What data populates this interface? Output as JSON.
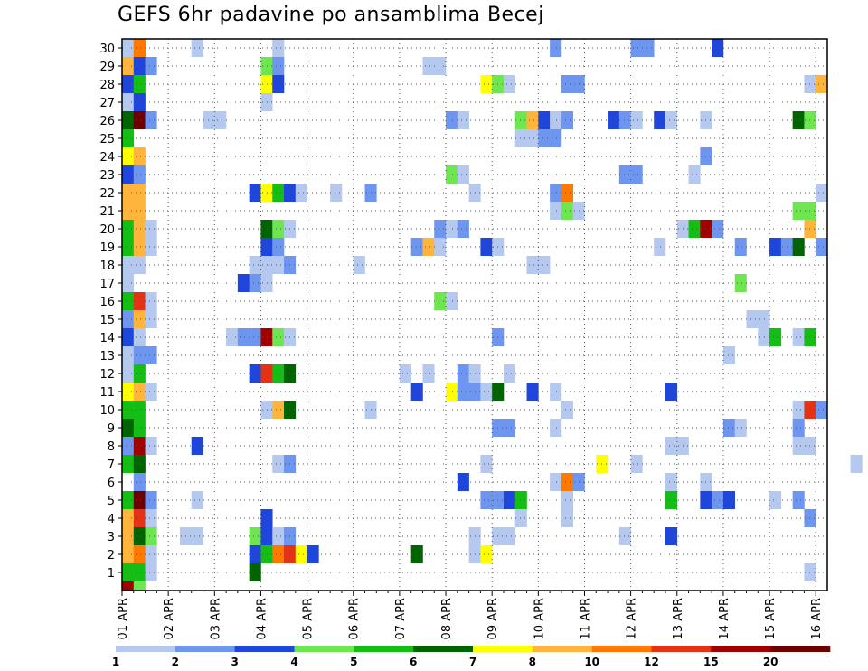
{
  "chart_data": {
    "type": "heatmap",
    "title": "GEFS 6hr padavine po ansamblima Becej",
    "xlabel": "",
    "ylabel": "",
    "x_tick_labels": [
      "01 APR",
      "02 APR",
      "03 APR",
      "04 APR",
      "05 APR",
      "06 APR",
      "07 APR",
      "08 APR",
      "09 APR",
      "10 APR",
      "11 APR",
      "12 APR",
      "13 APR",
      "14 APR",
      "15 APR",
      "16 APR"
    ],
    "y_tick_labels": [
      "1",
      "2",
      "3",
      "4",
      "5",
      "6",
      "7",
      "8",
      "9",
      "10",
      "11",
      "12",
      "13",
      "14",
      "15",
      "16",
      "17",
      "18",
      "19",
      "20",
      "21",
      "22",
      "23",
      "24",
      "25",
      "26",
      "27",
      "28",
      "29",
      "30"
    ],
    "x_range_steps": [
      0,
      61
    ],
    "y_range_members": [
      0,
      30
    ],
    "grid": true,
    "color_levels": [
      "1",
      "2",
      "3",
      "4",
      "5",
      "6",
      "7",
      "8",
      "10",
      "12",
      "15",
      "20"
    ],
    "color_scale": [
      "#b4c8f0",
      "#6e96f0",
      "#1e46dc",
      "#6ee650",
      "#14be14",
      "#006400",
      "#ffff00",
      "#ffb43c",
      "#ff7800",
      "#e63214",
      "#a00000",
      "#6e0000"
    ],
    "cells": [
      [
        0,
        0,
        10
      ],
      [
        1,
        0,
        3
      ],
      [
        0,
        30,
        8
      ],
      [
        1,
        30,
        4
      ],
      [
        6,
        30,
        0
      ],
      [
        13,
        30,
        0
      ],
      [
        37,
        30,
        1
      ],
      [
        44,
        30,
        1
      ],
      [
        44,
        30,
        1
      ],
      [
        45,
        30,
        1
      ],
      [
        51,
        30,
        2
      ],
      [
        0,
        1,
        4
      ],
      [
        1,
        1,
        4
      ],
      [
        2,
        1,
        0
      ],
      [
        11,
        1,
        5
      ],
      [
        59,
        1,
        0
      ],
      [
        0,
        2,
        7
      ],
      [
        1,
        2,
        8
      ],
      [
        2,
        2,
        0
      ],
      [
        11,
        2,
        2
      ],
      [
        12,
        2,
        4
      ],
      [
        13,
        2,
        8
      ],
      [
        14,
        2,
        9
      ],
      [
        15,
        2,
        6
      ],
      [
        16,
        2,
        2
      ],
      [
        25,
        2,
        5
      ],
      [
        30,
        2,
        0
      ],
      [
        31,
        2,
        6
      ],
      [
        0,
        3,
        7
      ],
      [
        1,
        3,
        5
      ],
      [
        2,
        3,
        3
      ],
      [
        5,
        3,
        0
      ],
      [
        6,
        3,
        0
      ],
      [
        11,
        3,
        3
      ],
      [
        12,
        3,
        2
      ],
      [
        13,
        3,
        0
      ],
      [
        14,
        3,
        1
      ],
      [
        30,
        3,
        0
      ],
      [
        32,
        3,
        0
      ],
      [
        33,
        3,
        0
      ],
      [
        43,
        3,
        0
      ],
      [
        47,
        3,
        2
      ],
      [
        0,
        4,
        7
      ],
      [
        1,
        4,
        9
      ],
      [
        2,
        4,
        0
      ],
      [
        12,
        4,
        2
      ],
      [
        34,
        4,
        0
      ],
      [
        38,
        4,
        0
      ],
      [
        59,
        4,
        1
      ],
      [
        0,
        5,
        4
      ],
      [
        1,
        5,
        11
      ],
      [
        2,
        5,
        1
      ],
      [
        6,
        5,
        0
      ],
      [
        31,
        5,
        1
      ],
      [
        32,
        5,
        1
      ],
      [
        33,
        5,
        2
      ],
      [
        34,
        5,
        4
      ],
      [
        38,
        5,
        0
      ],
      [
        47,
        5,
        4
      ],
      [
        50,
        5,
        2
      ],
      [
        51,
        5,
        1
      ],
      [
        52,
        5,
        2
      ],
      [
        56,
        5,
        0
      ],
      [
        58,
        5,
        1
      ],
      [
        1,
        6,
        1
      ],
      [
        29,
        6,
        2
      ],
      [
        37,
        6,
        0
      ],
      [
        38,
        6,
        8
      ],
      [
        39,
        6,
        1
      ],
      [
        47,
        6,
        0
      ],
      [
        50,
        6,
        0
      ],
      [
        0,
        7,
        4
      ],
      [
        1,
        7,
        5
      ],
      [
        13,
        7,
        0
      ],
      [
        14,
        7,
        1
      ],
      [
        31,
        7,
        0
      ],
      [
        41,
        7,
        6
      ],
      [
        44,
        7,
        0
      ],
      [
        63,
        7,
        0
      ],
      [
        0,
        8,
        1
      ],
      [
        1,
        8,
        10
      ],
      [
        2,
        8,
        0
      ],
      [
        6,
        8,
        2
      ],
      [
        47,
        8,
        0
      ],
      [
        48,
        8,
        0
      ],
      [
        58,
        8,
        0
      ],
      [
        59,
        8,
        0
      ],
      [
        0,
        9,
        5
      ],
      [
        1,
        9,
        4
      ],
      [
        32,
        9,
        1
      ],
      [
        33,
        9,
        1
      ],
      [
        37,
        9,
        0
      ],
      [
        52,
        9,
        1
      ],
      [
        53,
        9,
        0
      ],
      [
        58,
        9,
        1
      ],
      [
        0,
        10,
        4
      ],
      [
        1,
        10,
        4
      ],
      [
        12,
        10,
        0
      ],
      [
        13,
        10,
        7
      ],
      [
        14,
        10,
        5
      ],
      [
        21,
        10,
        0
      ],
      [
        38,
        10,
        0
      ],
      [
        58,
        10,
        0
      ],
      [
        59,
        10,
        9
      ],
      [
        60,
        10,
        1
      ],
      [
        0,
        11,
        6
      ],
      [
        1,
        11,
        7
      ],
      [
        2,
        11,
        0
      ],
      [
        25,
        11,
        2
      ],
      [
        28,
        11,
        6
      ],
      [
        29,
        11,
        1
      ],
      [
        30,
        11,
        1
      ],
      [
        31,
        11,
        0
      ],
      [
        32,
        11,
        5
      ],
      [
        35,
        11,
        2
      ],
      [
        37,
        11,
        0
      ],
      [
        47,
        11,
        2
      ],
      [
        0,
        12,
        0
      ],
      [
        1,
        12,
        4
      ],
      [
        11,
        12,
        2
      ],
      [
        12,
        12,
        9
      ],
      [
        13,
        12,
        4
      ],
      [
        14,
        12,
        5
      ],
      [
        24,
        12,
        0
      ],
      [
        26,
        12,
        0
      ],
      [
        29,
        12,
        1
      ],
      [
        30,
        12,
        0
      ],
      [
        33,
        12,
        0
      ],
      [
        0,
        13,
        0
      ],
      [
        1,
        13,
        1
      ],
      [
        2,
        13,
        1
      ],
      [
        52,
        13,
        0
      ],
      [
        0,
        14,
        2
      ],
      [
        1,
        14,
        0
      ],
      [
        9,
        14,
        0
      ],
      [
        10,
        14,
        1
      ],
      [
        11,
        14,
        1
      ],
      [
        12,
        14,
        10
      ],
      [
        13,
        14,
        3
      ],
      [
        14,
        14,
        0
      ],
      [
        32,
        14,
        1
      ],
      [
        55,
        14,
        0
      ],
      [
        56,
        14,
        4
      ],
      [
        58,
        14,
        0
      ],
      [
        59,
        14,
        4
      ],
      [
        0,
        15,
        1
      ],
      [
        1,
        15,
        7
      ],
      [
        2,
        15,
        0
      ],
      [
        54,
        15,
        0
      ],
      [
        55,
        15,
        0
      ],
      [
        0,
        16,
        4
      ],
      [
        1,
        16,
        9
      ],
      [
        2,
        16,
        0
      ],
      [
        27,
        16,
        3
      ],
      [
        28,
        16,
        0
      ],
      [
        0,
        17,
        0
      ],
      [
        10,
        17,
        2
      ],
      [
        11,
        17,
        1
      ],
      [
        12,
        17,
        0
      ],
      [
        53,
        17,
        3
      ],
      [
        0,
        18,
        0
      ],
      [
        1,
        18,
        0
      ],
      [
        11,
        18,
        0
      ],
      [
        12,
        18,
        0
      ],
      [
        13,
        18,
        0
      ],
      [
        14,
        18,
        1
      ],
      [
        20,
        18,
        0
      ],
      [
        35,
        18,
        0
      ],
      [
        36,
        18,
        0
      ],
      [
        0,
        19,
        4
      ],
      [
        1,
        19,
        7
      ],
      [
        2,
        19,
        0
      ],
      [
        12,
        19,
        2
      ],
      [
        13,
        19,
        1
      ],
      [
        25,
        19,
        1
      ],
      [
        26,
        19,
        7
      ],
      [
        27,
        19,
        0
      ],
      [
        31,
        19,
        2
      ],
      [
        32,
        19,
        0
      ],
      [
        46,
        19,
        0
      ],
      [
        53,
        19,
        1
      ],
      [
        56,
        19,
        2
      ],
      [
        57,
        19,
        1
      ],
      [
        58,
        19,
        5
      ],
      [
        60,
        19,
        1
      ],
      [
        0,
        20,
        4
      ],
      [
        1,
        20,
        7
      ],
      [
        2,
        20,
        0
      ],
      [
        12,
        20,
        5
      ],
      [
        13,
        20,
        3
      ],
      [
        14,
        20,
        0
      ],
      [
        27,
        20,
        1
      ],
      [
        28,
        20,
        0
      ],
      [
        29,
        20,
        1
      ],
      [
        48,
        20,
        0
      ],
      [
        49,
        20,
        4
      ],
      [
        50,
        20,
        10
      ],
      [
        51,
        20,
        1
      ],
      [
        59,
        20,
        7
      ],
      [
        0,
        21,
        7
      ],
      [
        1,
        21,
        7
      ],
      [
        37,
        21,
        0
      ],
      [
        38,
        21,
        3
      ],
      [
        39,
        21,
        0
      ],
      [
        58,
        21,
        3
      ],
      [
        59,
        21,
        3
      ],
      [
        0,
        22,
        7
      ],
      [
        1,
        22,
        7
      ],
      [
        11,
        22,
        2
      ],
      [
        12,
        22,
        6
      ],
      [
        13,
        22,
        4
      ],
      [
        14,
        22,
        2
      ],
      [
        15,
        22,
        0
      ],
      [
        18,
        22,
        0
      ],
      [
        21,
        22,
        1
      ],
      [
        30,
        22,
        0
      ],
      [
        37,
        22,
        1
      ],
      [
        38,
        22,
        8
      ],
      [
        60,
        22,
        0
      ],
      [
        0,
        23,
        2
      ],
      [
        1,
        23,
        1
      ],
      [
        28,
        23,
        3
      ],
      [
        29,
        23,
        0
      ],
      [
        43,
        23,
        1
      ],
      [
        44,
        23,
        1
      ],
      [
        49,
        23,
        0
      ],
      [
        0,
        24,
        6
      ],
      [
        1,
        24,
        7
      ],
      [
        50,
        24,
        1
      ],
      [
        0,
        25,
        4
      ],
      [
        34,
        25,
        0
      ],
      [
        35,
        25,
        0
      ],
      [
        36,
        25,
        1
      ],
      [
        37,
        25,
        1
      ],
      [
        0,
        26,
        5
      ],
      [
        1,
        26,
        11
      ],
      [
        2,
        26,
        1
      ],
      [
        7,
        26,
        0
      ],
      [
        8,
        26,
        0
      ],
      [
        28,
        26,
        1
      ],
      [
        29,
        26,
        0
      ],
      [
        34,
        26,
        3
      ],
      [
        35,
        26,
        7
      ],
      [
        36,
        26,
        2
      ],
      [
        37,
        26,
        0
      ],
      [
        38,
        26,
        1
      ],
      [
        42,
        26,
        2
      ],
      [
        43,
        26,
        1
      ],
      [
        44,
        26,
        0
      ],
      [
        46,
        26,
        2
      ],
      [
        47,
        26,
        0
      ],
      [
        50,
        26,
        0
      ],
      [
        58,
        26,
        5
      ],
      [
        59,
        26,
        3
      ],
      [
        0,
        27,
        0
      ],
      [
        1,
        27,
        2
      ],
      [
        12,
        27,
        0
      ],
      [
        0,
        28,
        2
      ],
      [
        1,
        28,
        4
      ],
      [
        12,
        28,
        6
      ],
      [
        13,
        28,
        2
      ],
      [
        31,
        28,
        6
      ],
      [
        32,
        28,
        3
      ],
      [
        33,
        28,
        0
      ],
      [
        38,
        28,
        1
      ],
      [
        39,
        28,
        1
      ],
      [
        59,
        28,
        0
      ],
      [
        60,
        28,
        7
      ],
      [
        0,
        29,
        7
      ],
      [
        1,
        29,
        2
      ],
      [
        2,
        29,
        1
      ],
      [
        12,
        29,
        3
      ],
      [
        13,
        29,
        1
      ],
      [
        26,
        29,
        0
      ],
      [
        27,
        29,
        0
      ],
      [
        0,
        30,
        0
      ],
      [
        1,
        30,
        8
      ]
    ]
  }
}
